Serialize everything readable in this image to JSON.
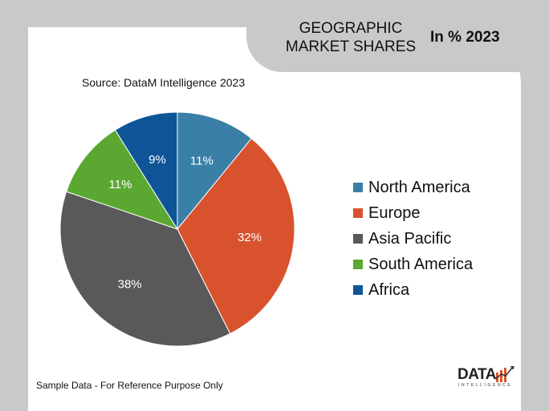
{
  "header": {
    "title_line1": "GEOGRAPHIC",
    "title_line2": "MARKET SHARES",
    "subtitle": "In % 2023"
  },
  "source": "Source: DataM Intelligence  2023",
  "footnote": "Sample Data - For Reference Purpose Only",
  "logo": {
    "text": "DATA",
    "subtext": "INTELLIGENCE"
  },
  "chart_data": {
    "type": "pie",
    "categories": [
      "North America",
      "Europe",
      "Asia Pacific",
      "South America",
      "Africa"
    ],
    "values": [
      11,
      32,
      38,
      11,
      9
    ],
    "labels": [
      "11%",
      "32%",
      "38%",
      "11%",
      "9%"
    ],
    "colors": [
      "#3a7fa6",
      "#d9522e",
      "#595959",
      "#5aa832",
      "#0d5596"
    ],
    "label_colors": [
      "#ffffff",
      "#ffffff",
      "#ffffff",
      "#ffffff",
      "#ffffff"
    ],
    "start_angle_deg": 0,
    "direction": "clockwise",
    "legend_position": "right"
  }
}
